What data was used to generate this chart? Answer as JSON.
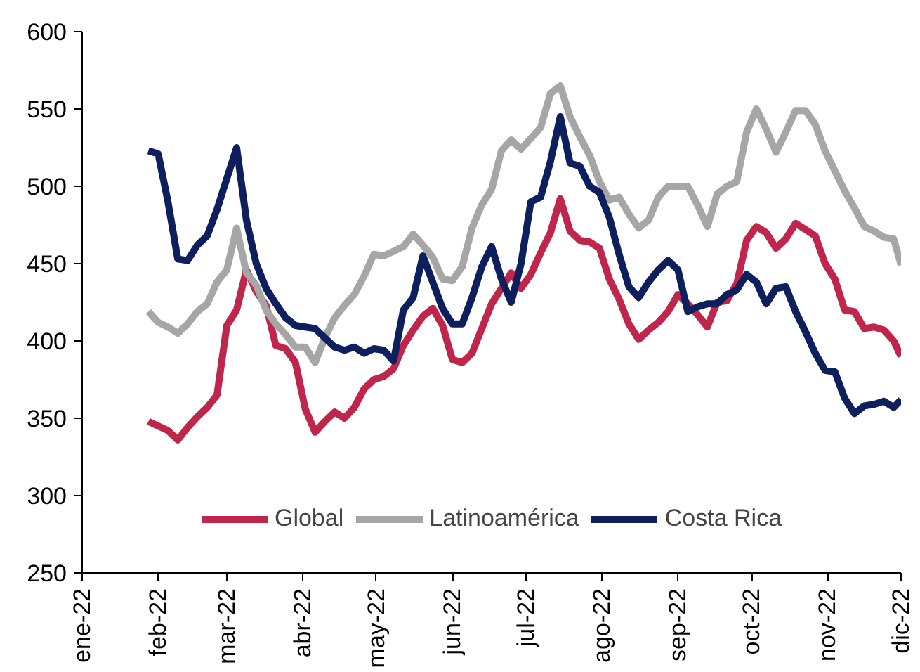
{
  "chart_data": {
    "type": "line",
    "x": [
      "2022-01-28",
      "2022-02-01",
      "2022-02-05",
      "2022-02-09",
      "2022-02-13",
      "2022-02-17",
      "2022-02-21",
      "2022-02-25",
      "2022-03-01",
      "2022-03-05",
      "2022-03-09",
      "2022-03-13",
      "2022-03-17",
      "2022-03-21",
      "2022-03-25",
      "2022-03-29",
      "2022-04-02",
      "2022-04-06",
      "2022-04-10",
      "2022-04-14",
      "2022-04-18",
      "2022-04-22",
      "2022-04-26",
      "2022-04-30",
      "2022-05-04",
      "2022-05-08",
      "2022-05-12",
      "2022-05-16",
      "2022-05-20",
      "2022-05-24",
      "2022-05-28",
      "2022-06-01",
      "2022-06-05",
      "2022-06-09",
      "2022-06-13",
      "2022-06-17",
      "2022-06-21",
      "2022-06-25",
      "2022-06-29",
      "2022-07-03",
      "2022-07-07",
      "2022-07-11",
      "2022-07-15",
      "2022-07-19",
      "2022-07-23",
      "2022-07-27",
      "2022-07-31",
      "2022-08-04",
      "2022-08-08",
      "2022-08-12",
      "2022-08-16",
      "2022-08-20",
      "2022-08-24",
      "2022-08-28",
      "2022-09-01",
      "2022-09-05",
      "2022-09-09",
      "2022-09-13",
      "2022-09-17",
      "2022-09-21",
      "2022-09-25",
      "2022-09-29",
      "2022-10-03",
      "2022-10-07",
      "2022-10-11",
      "2022-10-15",
      "2022-10-19",
      "2022-10-23",
      "2022-10-27",
      "2022-10-31",
      "2022-11-04",
      "2022-11-08",
      "2022-11-12",
      "2022-11-16",
      "2022-11-20",
      "2022-11-24",
      "2022-11-28",
      "2022-12-01"
    ],
    "series": [
      {
        "name": "Global",
        "color": "#c0254c",
        "values": [
          348,
          345,
          342,
          336,
          344,
          351,
          357,
          365,
          410,
          420,
          446,
          432,
          423,
          397,
          395,
          386,
          356,
          341,
          348,
          354,
          350,
          357,
          369,
          375,
          377,
          382,
          397,
          407,
          416,
          421,
          410,
          388,
          386,
          392,
          408,
          424,
          434,
          444,
          434,
          443,
          457,
          470,
          492,
          471,
          465,
          464,
          460,
          440,
          427,
          411,
          401,
          407,
          412,
          419,
          430,
          424,
          417,
          409,
          425,
          426,
          437,
          465,
          474,
          470,
          460,
          466,
          476,
          472,
          468,
          450,
          440,
          420,
          419,
          408,
          409,
          407,
          400,
          390
        ]
      },
      {
        "name": "Latinoamérica",
        "color": "#a6a6a6",
        "values": [
          419,
          412,
          409,
          405,
          411,
          419,
          424,
          438,
          446,
          473,
          444,
          436,
          420,
          411,
          404,
          396,
          396,
          386,
          402,
          415,
          423,
          430,
          442,
          456,
          455,
          458,
          461,
          469,
          462,
          454,
          440,
          439,
          448,
          473,
          488,
          498,
          523,
          530,
          524,
          531,
          538,
          560,
          565,
          545,
          532,
          520,
          503,
          491,
          493,
          482,
          473,
          478,
          493,
          500,
          500,
          500,
          488,
          474,
          495,
          500,
          503,
          535,
          550,
          537,
          522,
          535,
          549,
          549,
          540,
          523,
          510,
          497,
          486,
          474,
          471,
          467,
          466,
          449
        ]
      },
      {
        "name": "Costa Rica",
        "color": "#0d1f5c",
        "values": [
          523,
          521,
          490,
          453,
          452,
          462,
          468,
          485,
          505,
          525,
          478,
          450,
          434,
          424,
          415,
          410,
          409,
          408,
          402,
          396,
          394,
          396,
          392,
          395,
          394,
          387,
          420,
          428,
          455,
          438,
          421,
          411,
          411,
          428,
          448,
          461,
          440,
          425,
          450,
          490,
          493,
          516,
          545,
          515,
          513,
          500,
          496,
          480,
          456,
          435,
          428,
          438,
          446,
          452,
          446,
          419,
          422,
          424,
          424,
          430,
          433,
          443,
          438,
          424,
          434,
          435,
          419,
          406,
          392,
          381,
          380,
          363,
          353,
          358,
          359,
          361,
          357,
          362
        ]
      }
    ],
    "xlim": [
      "2022-01-01",
      "2022-12-01"
    ],
    "xticks": [
      {
        "value": "2022-01-01",
        "label": "ene-22"
      },
      {
        "value": "2022-02-01",
        "label": "feb-22"
      },
      {
        "value": "2022-03-01",
        "label": "mar-22"
      },
      {
        "value": "2022-04-01",
        "label": "abr-22"
      },
      {
        "value": "2022-05-01",
        "label": "may-22"
      },
      {
        "value": "2022-06-01",
        "label": "jun-22"
      },
      {
        "value": "2022-07-01",
        "label": "jul-22"
      },
      {
        "value": "2022-08-01",
        "label": "ago-22"
      },
      {
        "value": "2022-09-01",
        "label": "sep-22"
      },
      {
        "value": "2022-10-01",
        "label": "oct-22"
      },
      {
        "value": "2022-11-01",
        "label": "nov-22"
      },
      {
        "value": "2022-12-01",
        "label": "dic-22"
      }
    ],
    "ylim": [
      250,
      600
    ],
    "yticks": [
      250,
      300,
      350,
      400,
      450,
      500,
      550,
      600
    ],
    "grid": false,
    "legend": "bottom",
    "marker": "none",
    "line_style": "solid"
  }
}
